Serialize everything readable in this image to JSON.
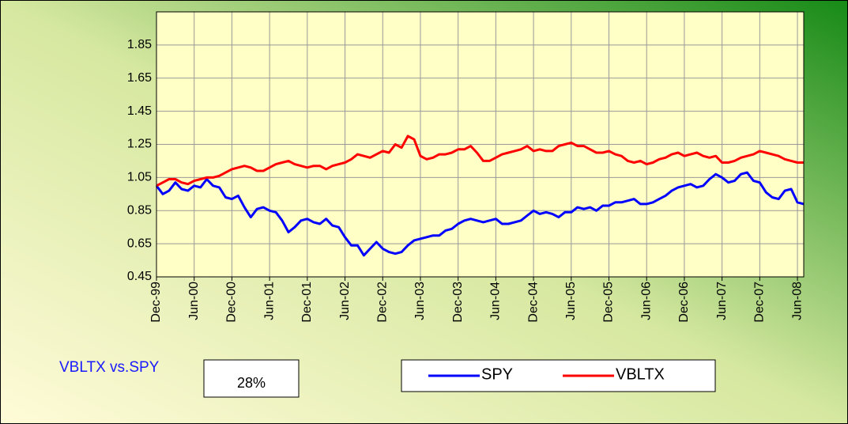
{
  "chart_data": {
    "type": "line",
    "annotation": "VBLTX vs.SPY",
    "annotation_value": "28%",
    "x": [
      "1999-12",
      "2000-01",
      "2000-02",
      "2000-03",
      "2000-04",
      "2000-05",
      "2000-06",
      "2000-07",
      "2000-08",
      "2000-09",
      "2000-10",
      "2000-11",
      "2000-12",
      "2001-01",
      "2001-02",
      "2001-03",
      "2001-04",
      "2001-05",
      "2001-06",
      "2001-07",
      "2001-08",
      "2001-09",
      "2001-10",
      "2001-11",
      "2001-12",
      "2002-01",
      "2002-02",
      "2002-03",
      "2002-04",
      "2002-05",
      "2002-06",
      "2002-07",
      "2002-08",
      "2002-09",
      "2002-10",
      "2002-11",
      "2002-12",
      "2003-01",
      "2003-02",
      "2003-03",
      "2003-04",
      "2003-05",
      "2003-06",
      "2003-07",
      "2003-08",
      "2003-09",
      "2003-10",
      "2003-11",
      "2003-12",
      "2004-01",
      "2004-02",
      "2004-03",
      "2004-04",
      "2004-05",
      "2004-06",
      "2004-07",
      "2004-08",
      "2004-09",
      "2004-10",
      "2004-11",
      "2004-12",
      "2005-01",
      "2005-02",
      "2005-03",
      "2005-04",
      "2005-05",
      "2005-06",
      "2005-07",
      "2005-08",
      "2005-09",
      "2005-10",
      "2005-11",
      "2005-12",
      "2006-01",
      "2006-02",
      "2006-03",
      "2006-04",
      "2006-05",
      "2006-06",
      "2006-07",
      "2006-08",
      "2006-09",
      "2006-10",
      "2006-11",
      "2006-12",
      "2007-01",
      "2007-02",
      "2007-03",
      "2007-04",
      "2007-05",
      "2007-06",
      "2007-07",
      "2007-08",
      "2007-09",
      "2007-10",
      "2007-11",
      "2007-12",
      "2008-01",
      "2008-02",
      "2008-03",
      "2008-04",
      "2008-05",
      "2008-06",
      "2008-07"
    ],
    "series": [
      {
        "name": "SPY",
        "color": "#0000ff",
        "values": [
          1.0,
          0.95,
          0.97,
          1.02,
          0.98,
          0.97,
          1.0,
          0.99,
          1.04,
          1.0,
          0.99,
          0.93,
          0.92,
          0.94,
          0.87,
          0.81,
          0.86,
          0.87,
          0.85,
          0.84,
          0.79,
          0.72,
          0.75,
          0.79,
          0.8,
          0.78,
          0.77,
          0.8,
          0.76,
          0.75,
          0.69,
          0.64,
          0.64,
          0.58,
          0.62,
          0.66,
          0.62,
          0.6,
          0.59,
          0.6,
          0.64,
          0.67,
          0.68,
          0.69,
          0.7,
          0.7,
          0.73,
          0.74,
          0.77,
          0.79,
          0.8,
          0.79,
          0.78,
          0.79,
          0.8,
          0.77,
          0.77,
          0.78,
          0.79,
          0.82,
          0.85,
          0.83,
          0.84,
          0.83,
          0.81,
          0.84,
          0.84,
          0.87,
          0.86,
          0.87,
          0.85,
          0.88,
          0.88,
          0.9,
          0.9,
          0.91,
          0.92,
          0.89,
          0.89,
          0.9,
          0.92,
          0.94,
          0.97,
          0.99,
          1.0,
          1.01,
          0.99,
          1.0,
          1.04,
          1.07,
          1.05,
          1.02,
          1.03,
          1.07,
          1.08,
          1.03,
          1.02,
          0.96,
          0.93,
          0.92,
          0.97,
          0.98,
          0.9,
          0.89
        ]
      },
      {
        "name": "VBLTX",
        "color": "#ff0000",
        "values": [
          1.0,
          1.02,
          1.04,
          1.04,
          1.02,
          1.01,
          1.03,
          1.04,
          1.05,
          1.05,
          1.06,
          1.08,
          1.1,
          1.11,
          1.12,
          1.11,
          1.09,
          1.09,
          1.11,
          1.13,
          1.14,
          1.15,
          1.13,
          1.12,
          1.11,
          1.12,
          1.12,
          1.1,
          1.12,
          1.13,
          1.14,
          1.16,
          1.19,
          1.18,
          1.17,
          1.19,
          1.21,
          1.2,
          1.25,
          1.23,
          1.3,
          1.28,
          1.18,
          1.16,
          1.17,
          1.19,
          1.19,
          1.2,
          1.22,
          1.22,
          1.24,
          1.2,
          1.15,
          1.15,
          1.17,
          1.19,
          1.2,
          1.21,
          1.22,
          1.24,
          1.21,
          1.22,
          1.21,
          1.21,
          1.24,
          1.25,
          1.26,
          1.24,
          1.24,
          1.22,
          1.2,
          1.2,
          1.21,
          1.19,
          1.18,
          1.15,
          1.14,
          1.15,
          1.13,
          1.14,
          1.16,
          1.17,
          1.19,
          1.2,
          1.18,
          1.19,
          1.2,
          1.18,
          1.17,
          1.18,
          1.14,
          1.14,
          1.15,
          1.17,
          1.18,
          1.19,
          1.21,
          1.2,
          1.19,
          1.18,
          1.16,
          1.15,
          1.14,
          1.14
        ]
      }
    ],
    "xlim": [
      "1999-12",
      "2008-07"
    ],
    "xticks": [
      {
        "value": "1999-12",
        "label": "Dec-99"
      },
      {
        "value": "2000-06",
        "label": "Jun-00"
      },
      {
        "value": "2000-12",
        "label": "Dec-00"
      },
      {
        "value": "2001-06",
        "label": "Jun-01"
      },
      {
        "value": "2001-12",
        "label": "Dec-01"
      },
      {
        "value": "2002-06",
        "label": "Jun-02"
      },
      {
        "value": "2002-12",
        "label": "Dec-02"
      },
      {
        "value": "2003-06",
        "label": "Jun-03"
      },
      {
        "value": "2003-12",
        "label": "Dec-03"
      },
      {
        "value": "2004-06",
        "label": "Jun-04"
      },
      {
        "value": "2004-12",
        "label": "Dec-04"
      },
      {
        "value": "2005-06",
        "label": "Jun-05"
      },
      {
        "value": "2005-12",
        "label": "Dec-05"
      },
      {
        "value": "2006-06",
        "label": "Jun-06"
      },
      {
        "value": "2006-12",
        "label": "Dec-06"
      },
      {
        "value": "2007-06",
        "label": "Jun-07"
      },
      {
        "value": "2007-12",
        "label": "Dec-07"
      },
      {
        "value": "2008-06",
        "label": "Jun-08"
      }
    ],
    "ylim": [
      0.45,
      2.05
    ],
    "yticks": [
      0.45,
      0.65,
      0.85,
      1.05,
      1.25,
      1.45,
      1.65,
      1.85
    ],
    "grid": true
  }
}
